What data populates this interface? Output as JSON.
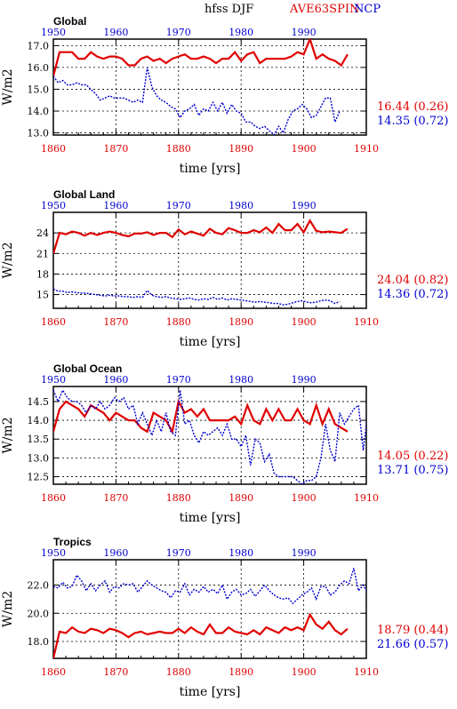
{
  "header": {
    "title": "hfss DJF",
    "series_a": "AVE63SPIN",
    "series_b": "NCP",
    "color_a": "#e00000",
    "color_b": "#0000d0"
  },
  "chart_data": [
    {
      "type": "line",
      "title": "Global",
      "xlabel": "time [yrs]",
      "ylabel": "W/m2",
      "bottom_axis": {
        "range": [
          1860,
          1910
        ],
        "ticks": [
          "1860",
          "1870",
          "1880",
          "1890",
          "1900",
          "1910"
        ]
      },
      "top_axis": {
        "range": [
          1950,
          2000
        ],
        "ticks": [
          "1950",
          "1960",
          "1970",
          "1980",
          "1990"
        ]
      },
      "ylim": [
        12.9,
        17.3
      ],
      "yticks": [
        13.0,
        14.0,
        15.0,
        16.0,
        17.0
      ],
      "ytick_labels": [
        "13.0",
        "14.0",
        "15.0",
        "16.0",
        "17.0"
      ],
      "grid": true,
      "series": [
        {
          "x_start": 1860,
          "values": [
            15.6,
            16.7,
            16.7,
            16.7,
            16.4,
            16.4,
            16.7,
            16.5,
            16.4,
            16.5,
            16.5,
            16.4,
            16.1,
            16.1,
            16.4,
            16.5,
            16.3,
            16.4,
            16.2,
            16.4,
            16.5,
            16.6,
            16.4,
            16.4,
            16.5,
            16.4,
            16.2,
            16.4,
            16.4,
            16.7,
            16.3,
            16.6,
            16.7,
            16.2,
            16.4,
            16.4,
            16.4,
            16.4,
            16.5,
            16.7,
            16.6,
            17.3,
            16.4,
            16.6,
            16.4,
            16.3,
            16.1,
            16.6
          ],
          "stat": "16.44 (0.26)"
        },
        {
          "x_start": 1860,
          "values": [
            15.6,
            15.3,
            15.4,
            15.2,
            15.2,
            15.3,
            15.2,
            15.2,
            15.0,
            14.8,
            14.5,
            14.6,
            14.7,
            14.6,
            14.6,
            14.6,
            14.5,
            14.4,
            14.5,
            14.4,
            16.0,
            15.1,
            14.7,
            14.5,
            14.4,
            14.2,
            14.1,
            13.7,
            14.0,
            14.1,
            14.3,
            13.8,
            14.1,
            14.0,
            14.4,
            14.0,
            14.4,
            13.9,
            14.3,
            14.0,
            13.9,
            13.5,
            13.5,
            13.3,
            13.2,
            13.3,
            13.1,
            12.9,
            13.3,
            13.0,
            13.6,
            14.0,
            14.1,
            14.3,
            14.1,
            13.7,
            13.8,
            14.2,
            14.6,
            14.6,
            13.5,
            14.0
          ],
          "stat": "14.35 (0.72)"
        }
      ]
    },
    {
      "type": "line",
      "title": "Global Land",
      "xlabel": "time [yrs]",
      "ylabel": "W/m2",
      "bottom_axis": {
        "range": [
          1860,
          1910
        ],
        "ticks": [
          "1860",
          "1870",
          "1880",
          "1890",
          "1900",
          "1910"
        ]
      },
      "top_axis": {
        "range": [
          1950,
          2000
        ],
        "ticks": [
          "1950",
          "1960",
          "1970",
          "1980",
          "1990"
        ]
      },
      "ylim": [
        13.0,
        27.0
      ],
      "yticks": [
        15,
        18,
        21,
        24
      ],
      "ytick_labels": [
        "15",
        "18",
        "21",
        "24"
      ],
      "grid": true,
      "series": [
        {
          "x_start": 1860,
          "values": [
            21.0,
            24.0,
            23.8,
            24.2,
            24.0,
            23.6,
            24.0,
            23.7,
            24.0,
            24.2,
            24.0,
            23.7,
            23.5,
            23.9,
            23.9,
            24.1,
            23.7,
            24.0,
            24.0,
            23.4,
            24.5,
            23.8,
            24.2,
            23.9,
            23.6,
            24.6,
            24.0,
            23.8,
            24.7,
            24.4,
            24.0,
            24.0,
            24.4,
            24.1,
            24.8,
            24.0,
            25.3,
            24.4,
            24.4,
            25.3,
            24.1,
            25.8,
            24.3,
            24.1,
            24.2,
            24.1,
            24.0,
            24.6
          ],
          "stat": "24.04 (0.82)"
        },
        {
          "x_start": 1860,
          "values": [
            15.8,
            15.5,
            15.5,
            15.3,
            15.4,
            15.3,
            15.2,
            15.2,
            15.1,
            15.0,
            14.9,
            14.8,
            14.9,
            14.8,
            14.8,
            14.7,
            14.7,
            14.6,
            14.7,
            14.6,
            15.6,
            14.9,
            14.7,
            14.6,
            14.7,
            14.5,
            14.4,
            14.3,
            14.4,
            14.5,
            14.3,
            14.2,
            14.4,
            14.3,
            14.6,
            14.3,
            14.5,
            14.2,
            14.4,
            14.3,
            14.2,
            14.1,
            14.0,
            13.9,
            14.0,
            13.9,
            13.8,
            13.7,
            13.7,
            13.5,
            13.6,
            13.8,
            14.0,
            14.1,
            13.9,
            13.8,
            13.9,
            14.1,
            14.2,
            14.1,
            13.7,
            14.0
          ],
          "stat": "14.36 (0.72)"
        }
      ]
    },
    {
      "type": "line",
      "title": "Global Ocean",
      "xlabel": "time [yrs]",
      "ylabel": "W/m2",
      "bottom_axis": {
        "range": [
          1860,
          1910
        ],
        "ticks": [
          "1860",
          "1870",
          "1880",
          "1890",
          "1900",
          "1910"
        ]
      },
      "top_axis": {
        "range": [
          1950,
          2000
        ],
        "ticks": [
          "1950",
          "1960",
          "1970",
          "1980",
          "1990"
        ]
      },
      "ylim": [
        12.3,
        14.9
      ],
      "yticks": [
        12.5,
        13.0,
        13.5,
        14.0,
        14.5
      ],
      "ytick_labels": [
        "12.5",
        "13.0",
        "13.5",
        "14.0",
        "14.5"
      ],
      "grid": true,
      "series": [
        {
          "x_start": 1860,
          "values": [
            13.7,
            14.3,
            14.5,
            14.4,
            14.3,
            14.1,
            14.4,
            14.3,
            14.2,
            14.0,
            14.2,
            14.1,
            14.0,
            14.0,
            13.8,
            13.7,
            14.2,
            14.1,
            14.0,
            13.7,
            14.5,
            14.2,
            14.3,
            14.1,
            14.3,
            14.0,
            14.0,
            14.0,
            14.0,
            14.1,
            13.9,
            14.4,
            14.0,
            13.9,
            14.3,
            14.0,
            14.3,
            14.0,
            14.0,
            14.3,
            14.0,
            13.9,
            14.4,
            13.9,
            14.3,
            13.9,
            13.8,
            13.7
          ],
          "stat": "14.05 (0.22)"
        },
        {
          "x_start": 1860,
          "values": [
            14.8,
            14.5,
            14.8,
            14.6,
            14.5,
            14.5,
            14.4,
            14.2,
            14.4,
            14.3,
            14.5,
            14.3,
            14.4,
            14.6,
            14.5,
            14.6,
            14.3,
            14.4,
            13.9,
            14.2,
            13.9,
            13.6,
            14.0,
            13.7,
            14.2,
            13.7,
            13.6,
            14.8,
            13.9,
            14.0,
            13.6,
            13.4,
            13.7,
            13.6,
            13.7,
            13.8,
            13.6,
            13.9,
            13.5,
            13.5,
            13.3,
            13.6,
            12.8,
            13.5,
            13.4,
            12.9,
            13.1,
            12.6,
            12.5,
            12.5,
            12.5,
            12.5,
            12.4,
            12.3,
            12.4,
            12.4,
            12.5,
            13.0,
            13.9,
            13.2,
            12.9,
            14.2,
            13.9,
            14.1,
            14.3,
            14.4,
            13.2,
            14.2
          ],
          "stat": "13.71 (0.75)"
        }
      ]
    },
    {
      "type": "line",
      "title": "Tropics",
      "xlabel": "time [yrs]",
      "ylabel": "W/m2",
      "bottom_axis": {
        "range": [
          1860,
          1910
        ],
        "ticks": [
          "1860",
          "1870",
          "1880",
          "1890",
          "1900",
          "1910"
        ]
      },
      "top_axis": {
        "range": [
          1950,
          2000
        ],
        "ticks": [
          "1950",
          "1960",
          "1970",
          "1980",
          "1990"
        ]
      },
      "ylim": [
        16.8,
        23.8
      ],
      "yticks": [
        18.0,
        20.0,
        22.0
      ],
      "ytick_labels": [
        "18.0",
        "20.0",
        "22.0"
      ],
      "grid": true,
      "series": [
        {
          "x_start": 1860,
          "values": [
            16.8,
            18.7,
            18.6,
            19.0,
            18.7,
            18.6,
            18.9,
            18.8,
            18.6,
            18.9,
            18.8,
            18.6,
            18.3,
            18.6,
            18.7,
            18.5,
            18.6,
            18.7,
            18.6,
            18.6,
            18.9,
            18.6,
            19.0,
            18.7,
            18.5,
            19.2,
            18.6,
            18.6,
            19.0,
            18.7,
            18.6,
            18.5,
            18.8,
            18.5,
            19.0,
            18.8,
            18.6,
            19.0,
            18.8,
            19.0,
            18.8,
            19.9,
            19.2,
            18.9,
            19.4,
            18.8,
            18.5,
            18.9
          ],
          "stat": "18.79 (0.44)"
        },
        {
          "x_start": 1860,
          "values": [
            21.9,
            21.8,
            22.2,
            21.8,
            21.9,
            22.7,
            22.3,
            21.6,
            22.1,
            21.6,
            22.0,
            22.3,
            21.5,
            21.9,
            21.8,
            22.1,
            22.0,
            22.1,
            21.5,
            21.9,
            22.3,
            22.0,
            21.8,
            21.6,
            21.5,
            21.1,
            21.6,
            21.5,
            22.1,
            21.3,
            21.7,
            21.5,
            21.9,
            21.5,
            21.7,
            21.4,
            22.0,
            21.0,
            21.5,
            21.7,
            21.3,
            21.4,
            21.7,
            21.2,
            21.6,
            22.0,
            21.6,
            21.3,
            21.1,
            21.0,
            21.1,
            20.7,
            21.0,
            21.3,
            21.5,
            21.8,
            21.0,
            21.9,
            21.9,
            21.3,
            21.5,
            22.0,
            22.3,
            22.1,
            23.2,
            21.6,
            22.0,
            21.4,
            21.2,
            22.5,
            22.3,
            21.6,
            20.9,
            21.5
          ],
          "stat": "21.66 (0.57)"
        }
      ]
    }
  ]
}
